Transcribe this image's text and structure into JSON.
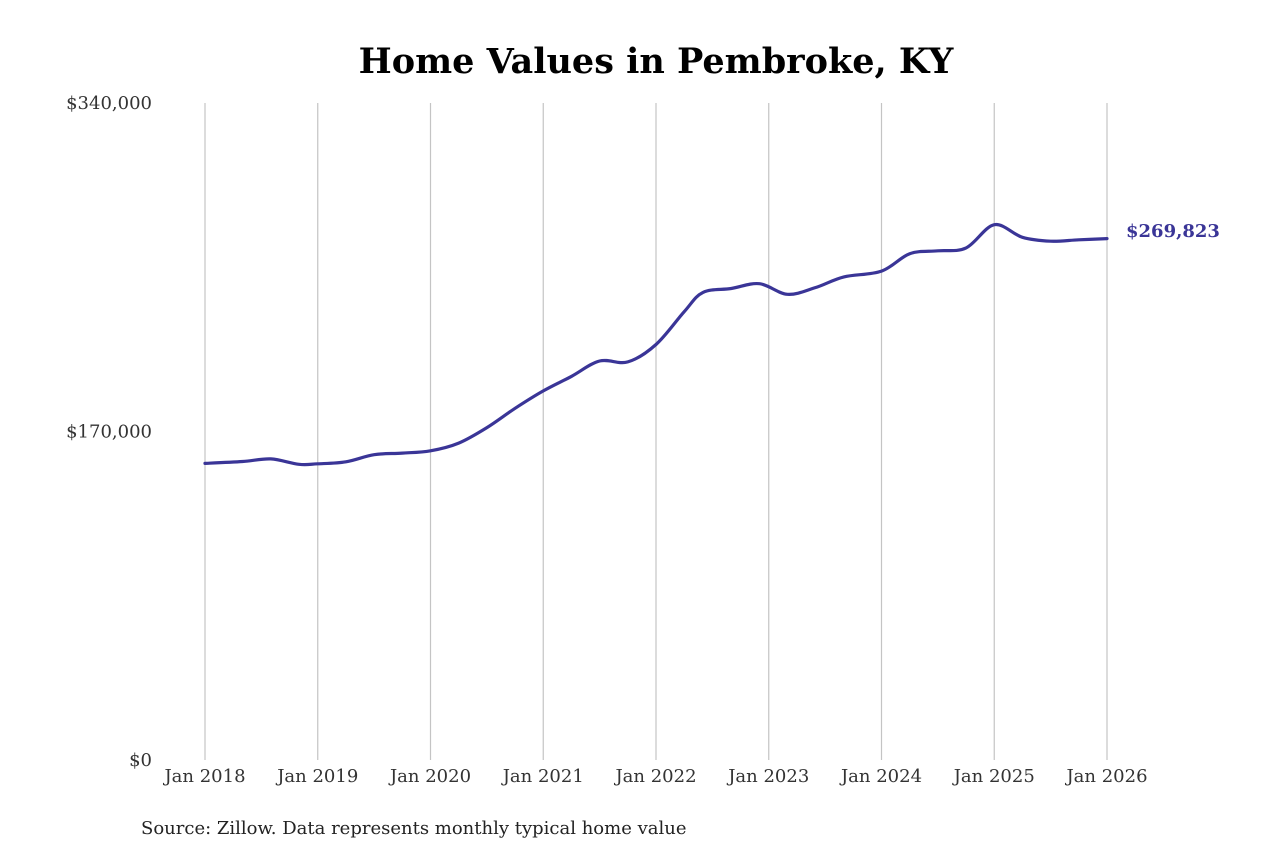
{
  "chart_data": {
    "type": "line",
    "title": "Home Values in Pembroke, KY",
    "xlabel": "",
    "ylabel": "",
    "x_ticks": [
      "Jan 2018",
      "Jan 2019",
      "Jan 2020",
      "Jan 2021",
      "Jan 2022",
      "Jan 2023",
      "Jan 2024",
      "Jan 2025",
      "Jan 2026"
    ],
    "y_ticks": [
      "$0",
      "$170,000",
      "$340,000"
    ],
    "ylim": [
      0,
      340000
    ],
    "xlim": [
      "2018-01",
      "2026-01"
    ],
    "grid": "vertical",
    "legend": "none",
    "end_label": "$269,823",
    "colors": {
      "series": "#3a3597",
      "grid": "#c4c4c4"
    },
    "series": [
      {
        "values": [
          {
            "x": "2018-01",
            "y": 153500
          },
          {
            "x": "2018-05",
            "y": 154500
          },
          {
            "x": "2018-08",
            "y": 155800
          },
          {
            "x": "2018-11",
            "y": 153000
          },
          {
            "x": "2019-01",
            "y": 153300
          },
          {
            "x": "2019-04",
            "y": 154300
          },
          {
            "x": "2019-07",
            "y": 158000
          },
          {
            "x": "2019-10",
            "y": 158800
          },
          {
            "x": "2020-01",
            "y": 160000
          },
          {
            "x": "2020-04",
            "y": 164000
          },
          {
            "x": "2020-07",
            "y": 172000
          },
          {
            "x": "2020-10",
            "y": 182000
          },
          {
            "x": "2021-01",
            "y": 191000
          },
          {
            "x": "2021-04",
            "y": 198500
          },
          {
            "x": "2021-07",
            "y": 206500
          },
          {
            "x": "2021-10",
            "y": 206000
          },
          {
            "x": "2022-01",
            "y": 215000
          },
          {
            "x": "2022-04",
            "y": 232000
          },
          {
            "x": "2022-06",
            "y": 242000
          },
          {
            "x": "2022-09",
            "y": 244000
          },
          {
            "x": "2022-12",
            "y": 246500
          },
          {
            "x": "2023-03",
            "y": 241000
          },
          {
            "x": "2023-06",
            "y": 244500
          },
          {
            "x": "2023-09",
            "y": 250000
          },
          {
            "x": "2024-01",
            "y": 253000
          },
          {
            "x": "2024-04",
            "y": 262000
          },
          {
            "x": "2024-07",
            "y": 263500
          },
          {
            "x": "2024-10",
            "y": 265000
          },
          {
            "x": "2025-01",
            "y": 277000
          },
          {
            "x": "2025-04",
            "y": 270500
          },
          {
            "x": "2025-07",
            "y": 268500
          },
          {
            "x": "2025-10",
            "y": 269200
          },
          {
            "x": "2026-01",
            "y": 269823
          }
        ]
      }
    ]
  },
  "source_note": "Source: Zillow. Data represents monthly typical home value"
}
